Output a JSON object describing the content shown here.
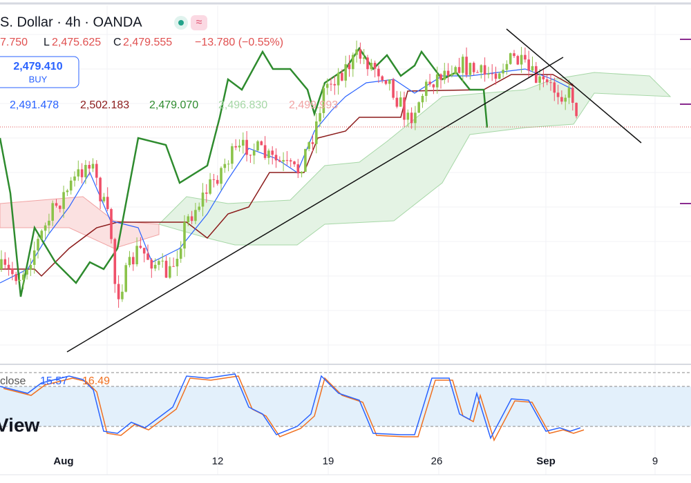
{
  "header": {
    "title": "S. Dollar · 4h · OANDA"
  },
  "ohlc": {
    "open_fragment": "7.750",
    "low_label": "L",
    "low": "2,475.625",
    "close_label": "C",
    "close": "2,479.555",
    "change": "−13.780 (−0.55%)"
  },
  "buy_button": {
    "price": "2,479.410",
    "label": "BUY"
  },
  "ichimoku": {
    "conversion": "2,491.478",
    "base": "2,502.183",
    "lagging": "2,479.070",
    "lead_a": "2,496.830",
    "lead_b": "2,499.993"
  },
  "stochastic": {
    "label": "close",
    "k": "15.57",
    "d": "16.49"
  },
  "watermark": "View",
  "x_axis": {
    "labels": [
      "Aug",
      "12",
      "19",
      "26",
      "Sep",
      "9"
    ]
  }
}
